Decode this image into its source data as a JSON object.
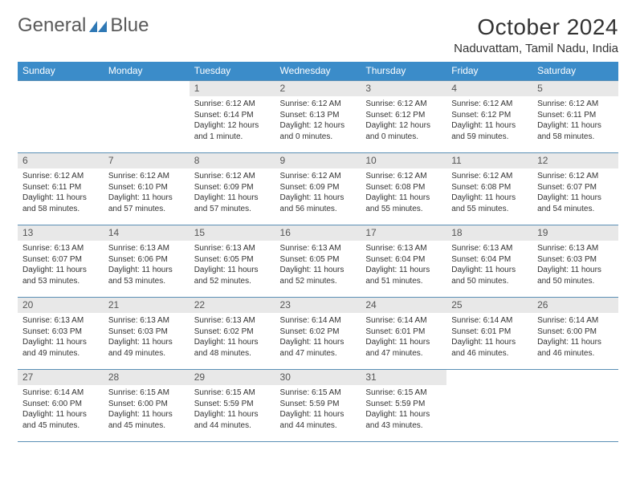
{
  "logo": {
    "part1": "General",
    "part2": "Blue"
  },
  "title": "October 2024",
  "location": "Naduvattam, Tamil Nadu, India",
  "colors": {
    "header_bg": "#3b8cc9",
    "header_text": "#ffffff",
    "daynum_bg": "#e8e8e8",
    "border": "#5a8fb5",
    "logo_accent": "#2f78b5",
    "text": "#333333"
  },
  "typography": {
    "title_fontsize": 28,
    "location_fontsize": 15,
    "dayhead_fontsize": 12,
    "daynum_fontsize": 12,
    "body_fontsize": 10
  },
  "weekdays": [
    "Sunday",
    "Monday",
    "Tuesday",
    "Wednesday",
    "Thursday",
    "Friday",
    "Saturday"
  ],
  "weeks": [
    [
      null,
      null,
      {
        "num": "1",
        "sunrise": "6:12 AM",
        "sunset": "6:14 PM",
        "daylight": "12 hours and 1 minute."
      },
      {
        "num": "2",
        "sunrise": "6:12 AM",
        "sunset": "6:13 PM",
        "daylight": "12 hours and 0 minutes."
      },
      {
        "num": "3",
        "sunrise": "6:12 AM",
        "sunset": "6:12 PM",
        "daylight": "12 hours and 0 minutes."
      },
      {
        "num": "4",
        "sunrise": "6:12 AM",
        "sunset": "6:12 PM",
        "daylight": "11 hours and 59 minutes."
      },
      {
        "num": "5",
        "sunrise": "6:12 AM",
        "sunset": "6:11 PM",
        "daylight": "11 hours and 58 minutes."
      }
    ],
    [
      {
        "num": "6",
        "sunrise": "6:12 AM",
        "sunset": "6:11 PM",
        "daylight": "11 hours and 58 minutes."
      },
      {
        "num": "7",
        "sunrise": "6:12 AM",
        "sunset": "6:10 PM",
        "daylight": "11 hours and 57 minutes."
      },
      {
        "num": "8",
        "sunrise": "6:12 AM",
        "sunset": "6:09 PM",
        "daylight": "11 hours and 57 minutes."
      },
      {
        "num": "9",
        "sunrise": "6:12 AM",
        "sunset": "6:09 PM",
        "daylight": "11 hours and 56 minutes."
      },
      {
        "num": "10",
        "sunrise": "6:12 AM",
        "sunset": "6:08 PM",
        "daylight": "11 hours and 55 minutes."
      },
      {
        "num": "11",
        "sunrise": "6:12 AM",
        "sunset": "6:08 PM",
        "daylight": "11 hours and 55 minutes."
      },
      {
        "num": "12",
        "sunrise": "6:12 AM",
        "sunset": "6:07 PM",
        "daylight": "11 hours and 54 minutes."
      }
    ],
    [
      {
        "num": "13",
        "sunrise": "6:13 AM",
        "sunset": "6:07 PM",
        "daylight": "11 hours and 53 minutes."
      },
      {
        "num": "14",
        "sunrise": "6:13 AM",
        "sunset": "6:06 PM",
        "daylight": "11 hours and 53 minutes."
      },
      {
        "num": "15",
        "sunrise": "6:13 AM",
        "sunset": "6:05 PM",
        "daylight": "11 hours and 52 minutes."
      },
      {
        "num": "16",
        "sunrise": "6:13 AM",
        "sunset": "6:05 PM",
        "daylight": "11 hours and 52 minutes."
      },
      {
        "num": "17",
        "sunrise": "6:13 AM",
        "sunset": "6:04 PM",
        "daylight": "11 hours and 51 minutes."
      },
      {
        "num": "18",
        "sunrise": "6:13 AM",
        "sunset": "6:04 PM",
        "daylight": "11 hours and 50 minutes."
      },
      {
        "num": "19",
        "sunrise": "6:13 AM",
        "sunset": "6:03 PM",
        "daylight": "11 hours and 50 minutes."
      }
    ],
    [
      {
        "num": "20",
        "sunrise": "6:13 AM",
        "sunset": "6:03 PM",
        "daylight": "11 hours and 49 minutes."
      },
      {
        "num": "21",
        "sunrise": "6:13 AM",
        "sunset": "6:03 PM",
        "daylight": "11 hours and 49 minutes."
      },
      {
        "num": "22",
        "sunrise": "6:13 AM",
        "sunset": "6:02 PM",
        "daylight": "11 hours and 48 minutes."
      },
      {
        "num": "23",
        "sunrise": "6:14 AM",
        "sunset": "6:02 PM",
        "daylight": "11 hours and 47 minutes."
      },
      {
        "num": "24",
        "sunrise": "6:14 AM",
        "sunset": "6:01 PM",
        "daylight": "11 hours and 47 minutes."
      },
      {
        "num": "25",
        "sunrise": "6:14 AM",
        "sunset": "6:01 PM",
        "daylight": "11 hours and 46 minutes."
      },
      {
        "num": "26",
        "sunrise": "6:14 AM",
        "sunset": "6:00 PM",
        "daylight": "11 hours and 46 minutes."
      }
    ],
    [
      {
        "num": "27",
        "sunrise": "6:14 AM",
        "sunset": "6:00 PM",
        "daylight": "11 hours and 45 minutes."
      },
      {
        "num": "28",
        "sunrise": "6:15 AM",
        "sunset": "6:00 PM",
        "daylight": "11 hours and 45 minutes."
      },
      {
        "num": "29",
        "sunrise": "6:15 AM",
        "sunset": "5:59 PM",
        "daylight": "11 hours and 44 minutes."
      },
      {
        "num": "30",
        "sunrise": "6:15 AM",
        "sunset": "5:59 PM",
        "daylight": "11 hours and 44 minutes."
      },
      {
        "num": "31",
        "sunrise": "6:15 AM",
        "sunset": "5:59 PM",
        "daylight": "11 hours and 43 minutes."
      },
      null,
      null
    ]
  ],
  "labels": {
    "sunrise": "Sunrise:",
    "sunset": "Sunset:",
    "daylight": "Daylight:"
  }
}
